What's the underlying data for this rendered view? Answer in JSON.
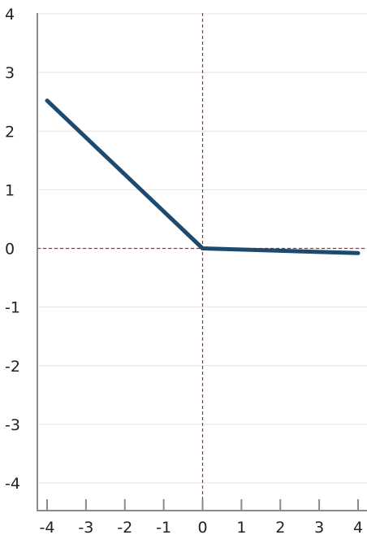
{
  "chart_data": {
    "type": "line",
    "title": "",
    "xlabel": "",
    "ylabel": "",
    "xlim": [
      -4,
      4
    ],
    "ylim": [
      -4,
      4
    ],
    "x_ticks": [
      "-4",
      "-3",
      "-2",
      "-1",
      "0",
      "1",
      "2",
      "3",
      "4"
    ],
    "y_ticks": [
      "4",
      "3",
      "2",
      "1",
      "0",
      "-1",
      "-2",
      "-3",
      "-4"
    ],
    "grid": "horizontal",
    "zero_lines": true,
    "series": [
      {
        "x": [
          -4,
          0,
          4
        ],
        "y": [
          2.52,
          0,
          -0.08
        ],
        "color": "#1d4a6e"
      }
    ],
    "colors": {
      "zero_line": "#b3283a",
      "axis": "#8a8a8a",
      "grid": "#e3e3e3"
    }
  }
}
